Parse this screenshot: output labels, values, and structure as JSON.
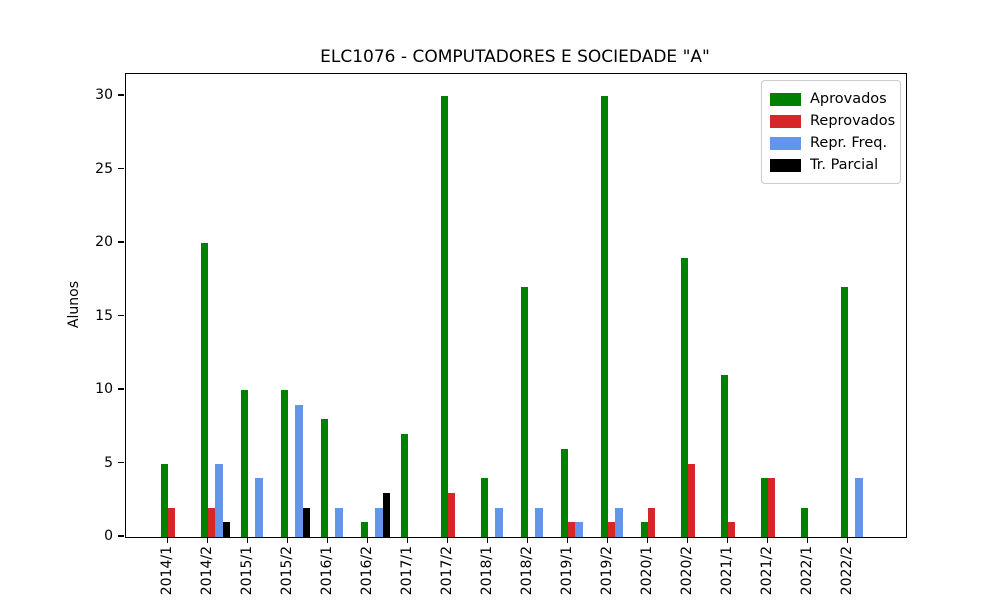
{
  "figure": {
    "title": "ELC1076 - COMPUTADORES E SOCIEDADE \"A\""
  },
  "chart_data": {
    "type": "bar",
    "title": "ELC1076 - COMPUTADORES E SOCIEDADE \"A\"",
    "xlabel": "",
    "ylabel": "Alunos",
    "categories": [
      "2014/1",
      "2014/2",
      "2015/1",
      "2015/2",
      "2016/1",
      "2016/2",
      "2017/1",
      "2017/2",
      "2018/1",
      "2018/2",
      "2019/1",
      "2019/2",
      "2020/1",
      "2020/2",
      "2021/1",
      "2021/2",
      "2022/1",
      "2022/2"
    ],
    "series": [
      {
        "name": "Aprovados",
        "color": "#008000",
        "values": [
          5,
          20,
          10,
          10,
          8,
          1,
          7,
          30,
          4,
          17,
          6,
          30,
          1,
          19,
          11,
          4,
          2,
          17
        ]
      },
      {
        "name": "Reprovados",
        "color": "#d62728",
        "values": [
          2,
          2,
          0,
          0,
          0,
          0,
          0,
          3,
          0,
          0,
          1,
          1,
          2,
          5,
          1,
          4,
          0,
          0
        ]
      },
      {
        "name": "Repr. Freq.",
        "color": "#6495ED",
        "values": [
          0,
          5,
          4,
          9,
          2,
          2,
          0,
          0,
          2,
          2,
          1,
          2,
          0,
          0,
          0,
          0,
          0,
          4
        ]
      },
      {
        "name": "Tr. Parcial",
        "color": "#000000",
        "values": [
          0,
          1,
          0,
          2,
          0,
          3,
          0,
          0,
          0,
          0,
          0,
          0,
          0,
          0,
          0,
          0,
          0,
          0
        ]
      }
    ],
    "yticks": [
      0,
      5,
      10,
      15,
      20,
      25,
      30
    ],
    "ylim": [
      0,
      31.5
    ],
    "grid": false,
    "legend_position": "upper right"
  }
}
